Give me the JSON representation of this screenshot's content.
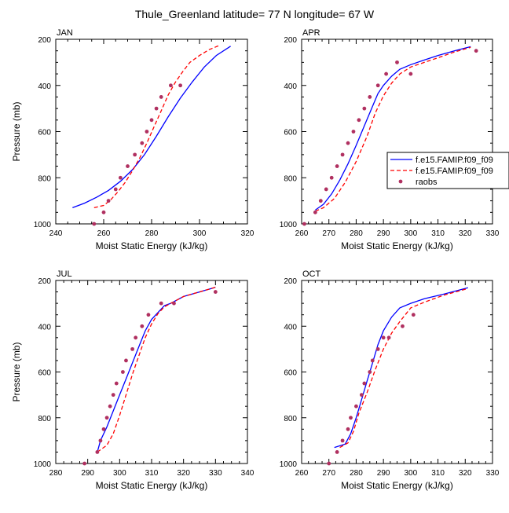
{
  "title": "Thule_Greenland  latitude= 77 N longitude= 67 W",
  "legend": {
    "model1": "f.e15.FAMIP.f09_f09",
    "model2": "f.e15.FAMIP.f09_f09",
    "obs": "raobs"
  },
  "colors": {
    "model1": "#0000ff",
    "model2": "#ff0000",
    "obs": "#b03060"
  },
  "chart_data": [
    {
      "type": "line",
      "panel_label": "JAN",
      "xlabel": "Moist Static Energy (kJ/kg)",
      "ylabel": "Pressure (mb)",
      "xlim": [
        240,
        320
      ],
      "ylim": [
        1000,
        200
      ],
      "xticks": [
        240,
        260,
        280,
        300,
        320
      ],
      "yticks": [
        200,
        400,
        600,
        800,
        1000
      ],
      "series": [
        {
          "name": "f.e15.FAMIP.f09_f09",
          "style": "solid",
          "x": [
            247,
            252,
            257,
            262,
            267,
            272,
            277,
            282,
            287,
            292,
            297,
            302,
            307,
            313
          ],
          "y": [
            930,
            910,
            885,
            855,
            815,
            765,
            700,
            620,
            535,
            455,
            385,
            320,
            270,
            230
          ]
        },
        {
          "name": "f.e15.FAMIP.f09_f09",
          "style": "dashed",
          "x": [
            256,
            260,
            263,
            266,
            269,
            272,
            275,
            278,
            281,
            284,
            287,
            290,
            293,
            296,
            300,
            304,
            308
          ],
          "y": [
            930,
            920,
            895,
            860,
            820,
            770,
            715,
            650,
            580,
            510,
            440,
            385,
            340,
            300,
            270,
            245,
            228
          ]
        },
        {
          "name": "raobs",
          "style": "markers",
          "x": [
            256,
            260,
            262,
            265,
            267,
            270,
            273,
            276,
            278,
            280,
            282,
            284,
            288,
            292
          ],
          "y": [
            1000,
            950,
            900,
            850,
            800,
            750,
            700,
            650,
            600,
            550,
            500,
            450,
            400,
            400
          ]
        }
      ]
    },
    {
      "type": "line",
      "panel_label": "APR",
      "xlabel": "Moist Static Energy (kJ/kg)",
      "ylabel": "",
      "xlim": [
        260,
        330
      ],
      "ylim": [
        1000,
        200
      ],
      "xticks": [
        260,
        270,
        280,
        290,
        300,
        310,
        320,
        330
      ],
      "yticks": [
        200,
        400,
        600,
        800,
        1000
      ],
      "series": [
        {
          "name": "f.e15.FAMIP.f09_f09",
          "style": "solid",
          "x": [
            265,
            268,
            271,
            274,
            277,
            280,
            283,
            286,
            288,
            290,
            293,
            296,
            300,
            305,
            310,
            316,
            322
          ],
          "y": [
            940,
            915,
            870,
            810,
            740,
            660,
            575,
            490,
            435,
            400,
            360,
            330,
            310,
            290,
            270,
            250,
            232
          ]
        },
        {
          "name": "f.e15.FAMIP.f09_f09",
          "style": "dashed",
          "x": [
            265,
            268,
            272,
            276,
            280,
            284,
            287,
            290,
            293,
            296,
            300,
            305,
            310,
            316,
            322
          ],
          "y": [
            945,
            930,
            890,
            820,
            730,
            620,
            520,
            445,
            390,
            350,
            320,
            300,
            280,
            255,
            235
          ]
        },
        {
          "name": "raobs",
          "style": "markers",
          "x": [
            261,
            265,
            267,
            269,
            271,
            273,
            275,
            277,
            279,
            281,
            283,
            285,
            288,
            291,
            295,
            300,
            324
          ],
          "y": [
            1000,
            950,
            900,
            850,
            800,
            750,
            700,
            650,
            600,
            550,
            500,
            450,
            400,
            350,
            300,
            350,
            250
          ]
        }
      ]
    },
    {
      "type": "line",
      "panel_label": "JUL",
      "xlabel": "Moist Static Energy (kJ/kg)",
      "ylabel": "Pressure (mb)",
      "xlim": [
        280,
        340
      ],
      "ylim": [
        1000,
        200
      ],
      "xticks": [
        280,
        290,
        300,
        310,
        320,
        330,
        340
      ],
      "yticks": [
        200,
        400,
        600,
        800,
        1000
      ],
      "series": [
        {
          "name": "f.e15.FAMIP.f09_f09",
          "style": "solid",
          "x": [
            293,
            294,
            296,
            298,
            300,
            302,
            304,
            306,
            308,
            310,
            312,
            314,
            316,
            320,
            325,
            330
          ],
          "y": [
            950,
            900,
            840,
            770,
            700,
            630,
            560,
            490,
            420,
            370,
            340,
            310,
            300,
            270,
            250,
            230
          ]
        },
        {
          "name": "f.e15.FAMIP.f09_f09",
          "style": "dashed",
          "x": [
            293,
            296,
            298,
            300,
            302,
            304,
            306,
            308,
            310,
            312,
            314,
            316,
            320,
            325,
            330
          ],
          "y": [
            950,
            920,
            870,
            790,
            700,
            610,
            530,
            450,
            390,
            345,
            315,
            300,
            270,
            250,
            230
          ]
        },
        {
          "name": "raobs",
          "style": "markers",
          "x": [
            289,
            293,
            294,
            295,
            296,
            297,
            298,
            299,
            301,
            302,
            304,
            305,
            307,
            309,
            313,
            317,
            330
          ],
          "y": [
            1000,
            950,
            900,
            850,
            800,
            750,
            700,
            650,
            600,
            550,
            500,
            450,
            400,
            350,
            300,
            300,
            250
          ]
        }
      ]
    },
    {
      "type": "line",
      "panel_label": "OCT",
      "xlabel": "Moist Static Energy (kJ/kg)",
      "ylabel": "",
      "xlim": [
        260,
        330
      ],
      "ylim": [
        1000,
        200
      ],
      "xticks": [
        260,
        270,
        280,
        290,
        300,
        310,
        320,
        330
      ],
      "yticks": [
        200,
        400,
        600,
        800,
        1000
      ],
      "series": [
        {
          "name": "f.e15.FAMIP.f09_f09",
          "style": "solid",
          "x": [
            272,
            276,
            278,
            280,
            282,
            284,
            286,
            288,
            290,
            293,
            296,
            300,
            305,
            312,
            321
          ],
          "y": [
            930,
            915,
            870,
            800,
            720,
            640,
            560,
            480,
            420,
            360,
            320,
            300,
            280,
            260,
            232
          ]
        },
        {
          "name": "f.e15.FAMIP.f09_f09",
          "style": "dashed",
          "x": [
            274,
            277,
            279,
            281,
            284,
            287,
            290,
            293,
            296,
            300,
            305,
            312,
            321
          ],
          "y": [
            930,
            910,
            860,
            780,
            690,
            590,
            500,
            430,
            380,
            320,
            295,
            265,
            235
          ]
        },
        {
          "name": "raobs",
          "style": "markers",
          "x": [
            270,
            273,
            275,
            277,
            278,
            280,
            282,
            283,
            285,
            286,
            288,
            290,
            292,
            297,
            301
          ],
          "y": [
            1000,
            950,
            900,
            850,
            800,
            750,
            700,
            650,
            600,
            550,
            500,
            450,
            450,
            400,
            350
          ]
        }
      ]
    }
  ]
}
